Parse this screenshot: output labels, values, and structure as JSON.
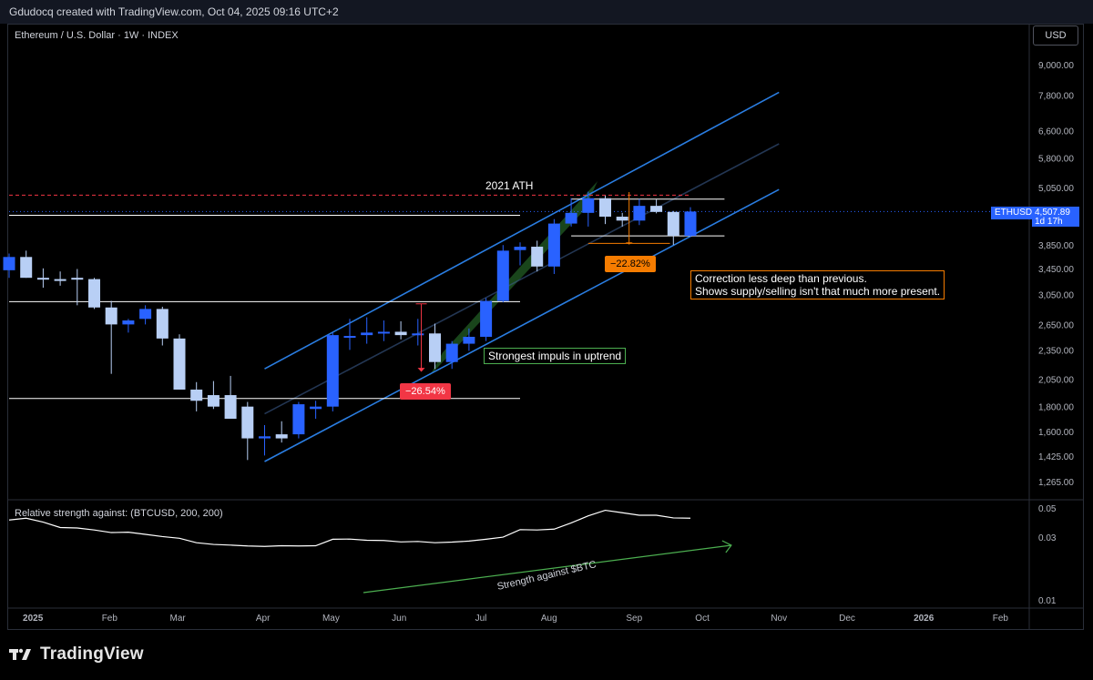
{
  "header": {
    "attribution": "Gdudocq created with TradingView.com, Oct 04, 2025 09:16 UTC+2",
    "symbol_title": "Ethereum / U.S. Dollar · 1W · INDEX",
    "currency_button": "USD"
  },
  "price_tag": {
    "symbol": "ETHUSD",
    "price": "4,507.89",
    "countdown": "1d 17h"
  },
  "annotations": {
    "ath_label": "2021 ATH",
    "impulse_note": "Strongest impuls in uptrend",
    "correction_note_line1": "Correction less deep than previous.",
    "correction_note_line2": "Shows supply/selling isn't that much more present.",
    "pct_first": "−26.54%",
    "pct_second": "−22.82%",
    "strength_label": "Strength against $BTC"
  },
  "indicator": {
    "title": "Relative strength against: (BTCUSD, 200, 200)"
  },
  "brand": {
    "name": "TradingView"
  },
  "colors": {
    "bull": "#2962ff",
    "bear": "#b8cff5",
    "channel": "#2a7de1",
    "impulse_band": "#2e7d32",
    "ath_line": "#f23645",
    "correction": "#f57c00",
    "strength_arrow": "#4caf50"
  },
  "chart_data": [
    {
      "type": "candlestick",
      "title": "Ethereum / U.S. Dollar · 1W · INDEX",
      "y_scale": "log",
      "y_ticks": [
        1265,
        1425,
        1600,
        1800,
        2050,
        2350,
        2650,
        3050,
        3450,
        3850,
        4507.89,
        5050,
        5800,
        6600,
        7800,
        9000
      ],
      "y_tick_labels": [
        "1,265.00",
        "1,425.00",
        "1,600.00",
        "1,800.00",
        "2,050.00",
        "2,350.00",
        "2,650.00",
        "3,050.00",
        "3,450.00",
        "3,850.00",
        "",
        "5,050.00",
        "5,800.00",
        "6,600.00",
        "7,800.00",
        "9,000.00"
      ],
      "x_tick_labels": [
        "2025",
        "Feb",
        "Mar",
        "Apr",
        "May",
        "Jun",
        "Jul",
        "Aug",
        "Sep",
        "Oct",
        "Nov",
        "Dec",
        "2026",
        "Feb"
      ],
      "x_tick_weeks": [
        1.4,
        5.9,
        9.9,
        14.9,
        18.9,
        22.9,
        27.7,
        31.7,
        36.7,
        40.7,
        45.2,
        49.2,
        53.7,
        58.2
      ],
      "candles": [
        {
          "w": 0,
          "o": 3420,
          "h": 3700,
          "l": 3300,
          "c": 3640
        },
        {
          "w": 1,
          "o": 3640,
          "h": 3750,
          "l": 3300,
          "c": 3300
        },
        {
          "w": 2,
          "o": 3300,
          "h": 3450,
          "l": 3150,
          "c": 3280
        },
        {
          "w": 3,
          "o": 3280,
          "h": 3400,
          "l": 3180,
          "c": 3270
        },
        {
          "w": 4,
          "o": 3300,
          "h": 3440,
          "l": 2900,
          "c": 3280
        },
        {
          "w": 5,
          "o": 3280,
          "h": 3300,
          "l": 2850,
          "c": 2870
        },
        {
          "w": 6,
          "o": 2870,
          "h": 2960,
          "l": 2100,
          "c": 2650
        },
        {
          "w": 7,
          "o": 2650,
          "h": 2720,
          "l": 2550,
          "c": 2700
        },
        {
          "w": 8,
          "o": 2720,
          "h": 2900,
          "l": 2650,
          "c": 2850
        },
        {
          "w": 9,
          "o": 2850,
          "h": 2880,
          "l": 2400,
          "c": 2480
        },
        {
          "w": 10,
          "o": 2480,
          "h": 2530,
          "l": 1950,
          "c": 1950
        },
        {
          "w": 11,
          "o": 1950,
          "h": 2020,
          "l": 1760,
          "c": 1850
        },
        {
          "w": 12,
          "o": 1900,
          "h": 2030,
          "l": 1780,
          "c": 1800
        },
        {
          "w": 13,
          "o": 1900,
          "h": 2080,
          "l": 1700,
          "c": 1700
        },
        {
          "w": 14,
          "o": 1800,
          "h": 1840,
          "l": 1400,
          "c": 1550
        },
        {
          "w": 15,
          "o": 1550,
          "h": 1650,
          "l": 1430,
          "c": 1565
        },
        {
          "w": 16,
          "o": 1580,
          "h": 1680,
          "l": 1520,
          "c": 1550
        },
        {
          "w": 17,
          "o": 1580,
          "h": 1840,
          "l": 1550,
          "c": 1820
        },
        {
          "w": 18,
          "o": 1780,
          "h": 1850,
          "l": 1700,
          "c": 1800
        },
        {
          "w": 19,
          "o": 1800,
          "h": 2550,
          "l": 1760,
          "c": 2520
        },
        {
          "w": 20,
          "o": 2500,
          "h": 2720,
          "l": 2350,
          "c": 2510
        },
        {
          "w": 21,
          "o": 2520,
          "h": 2740,
          "l": 2420,
          "c": 2550
        },
        {
          "w": 22,
          "o": 2550,
          "h": 2700,
          "l": 2450,
          "c": 2560
        },
        {
          "w": 23,
          "o": 2560,
          "h": 2690,
          "l": 2470,
          "c": 2520
        },
        {
          "w": 24,
          "o": 2520,
          "h": 2720,
          "l": 2400,
          "c": 2540
        },
        {
          "w": 25,
          "o": 2540,
          "h": 2660,
          "l": 2150,
          "c": 2220
        },
        {
          "w": 26,
          "o": 2220,
          "h": 2450,
          "l": 2150,
          "c": 2420
        },
        {
          "w": 27,
          "o": 2420,
          "h": 2600,
          "l": 2340,
          "c": 2500
        },
        {
          "w": 28,
          "o": 2500,
          "h": 3000,
          "l": 2450,
          "c": 2960
        },
        {
          "w": 29,
          "o": 2960,
          "h": 3850,
          "l": 2940,
          "c": 3750
        },
        {
          "w": 30,
          "o": 3760,
          "h": 3900,
          "l": 3500,
          "c": 3820
        },
        {
          "w": 31,
          "o": 3820,
          "h": 3930,
          "l": 3400,
          "c": 3480
        },
        {
          "w": 32,
          "o": 3480,
          "h": 4350,
          "l": 3360,
          "c": 4260
        },
        {
          "w": 33,
          "o": 4260,
          "h": 4800,
          "l": 4200,
          "c": 4480
        },
        {
          "w": 34,
          "o": 4480,
          "h": 4950,
          "l": 4200,
          "c": 4800
        },
        {
          "w": 35,
          "o": 4800,
          "h": 4860,
          "l": 4250,
          "c": 4400
        },
        {
          "w": 36,
          "o": 4400,
          "h": 4480,
          "l": 4200,
          "c": 4320
        },
        {
          "w": 37,
          "o": 4320,
          "h": 4780,
          "l": 4230,
          "c": 4630
        },
        {
          "w": 38,
          "o": 4630,
          "h": 4770,
          "l": 4470,
          "c": 4500
        },
        {
          "w": 39,
          "o": 4500,
          "h": 4520,
          "l": 3850,
          "c": 4020
        },
        {
          "w": 40,
          "o": 4020,
          "h": 4600,
          "l": 4000,
          "c": 4508
        }
      ],
      "reference_lines": [
        4870,
        4430,
        2950,
        1870
      ],
      "last_price": 4507.89
    },
    {
      "type": "line",
      "title": "Relative strength against: (BTCUSD, 200, 200)",
      "y_scale": "log",
      "y_ticks": [
        0.01,
        0.03,
        0.05
      ],
      "y_tick_labels": [
        "0.01",
        "0.03",
        "0.05"
      ],
      "series": [
        {
          "values": [
            0.0405,
            0.0418,
            0.039,
            0.0355,
            0.0352,
            0.034,
            0.0325,
            0.0327,
            0.0315,
            0.0303,
            0.0294,
            0.0272,
            0.0264,
            0.0261,
            0.0257,
            0.0255,
            0.0258,
            0.0257,
            0.0258,
            0.0289,
            0.029,
            0.0284,
            0.0283,
            0.0276,
            0.0278,
            0.0272,
            0.0275,
            0.028,
            0.0289,
            0.03,
            0.0342,
            0.034,
            0.0345,
            0.0385,
            0.0435,
            0.048,
            0.046,
            0.044,
            0.044,
            0.042,
            0.0418
          ]
        }
      ]
    }
  ]
}
